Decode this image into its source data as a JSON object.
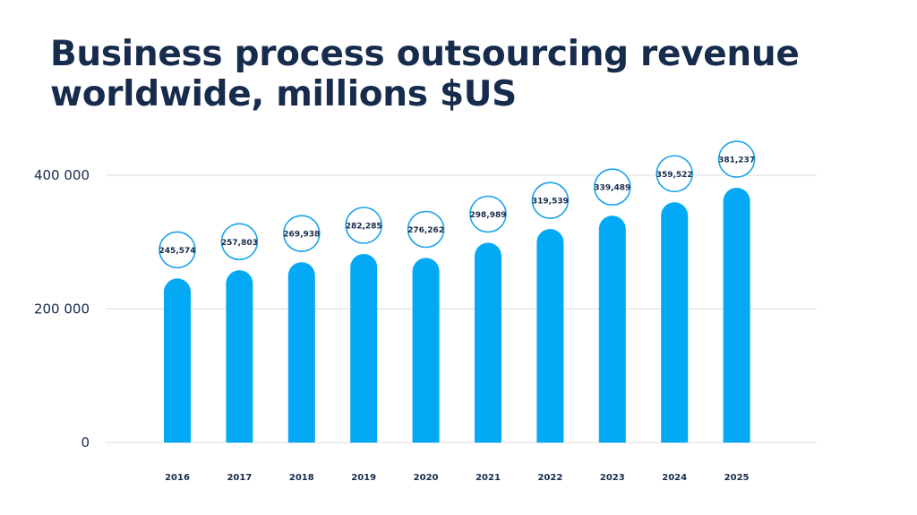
{
  "chart_data": {
    "type": "bar",
    "title": [
      "Business process outsourcing revenue",
      "worldwide, millions $US"
    ],
    "categories": [
      "2016",
      "2017",
      "2018",
      "2019",
      "2020",
      "2021",
      "2022",
      "2023",
      "2024",
      "2025"
    ],
    "values": [
      245574,
      257803,
      269938,
      282285,
      276262,
      298989,
      319539,
      339489,
      359522,
      381237
    ],
    "value_labels": [
      "245,574",
      "257,803",
      "269,938",
      "282,285",
      "276,262",
      "298,989",
      "319,539",
      "339,489",
      "359,522",
      "381,237"
    ],
    "yticks": [
      0,
      200000,
      400000
    ],
    "ytick_labels": [
      "0",
      "200 000",
      "400 000"
    ],
    "ylim": [
      0,
      400000
    ],
    "grid": true,
    "xlabel": "",
    "ylabel": "",
    "colors": {
      "bar": "#03a9f4",
      "text": "#172b4d",
      "grid": "#dddddd",
      "bubble_stroke": "#1aa3e8"
    }
  }
}
